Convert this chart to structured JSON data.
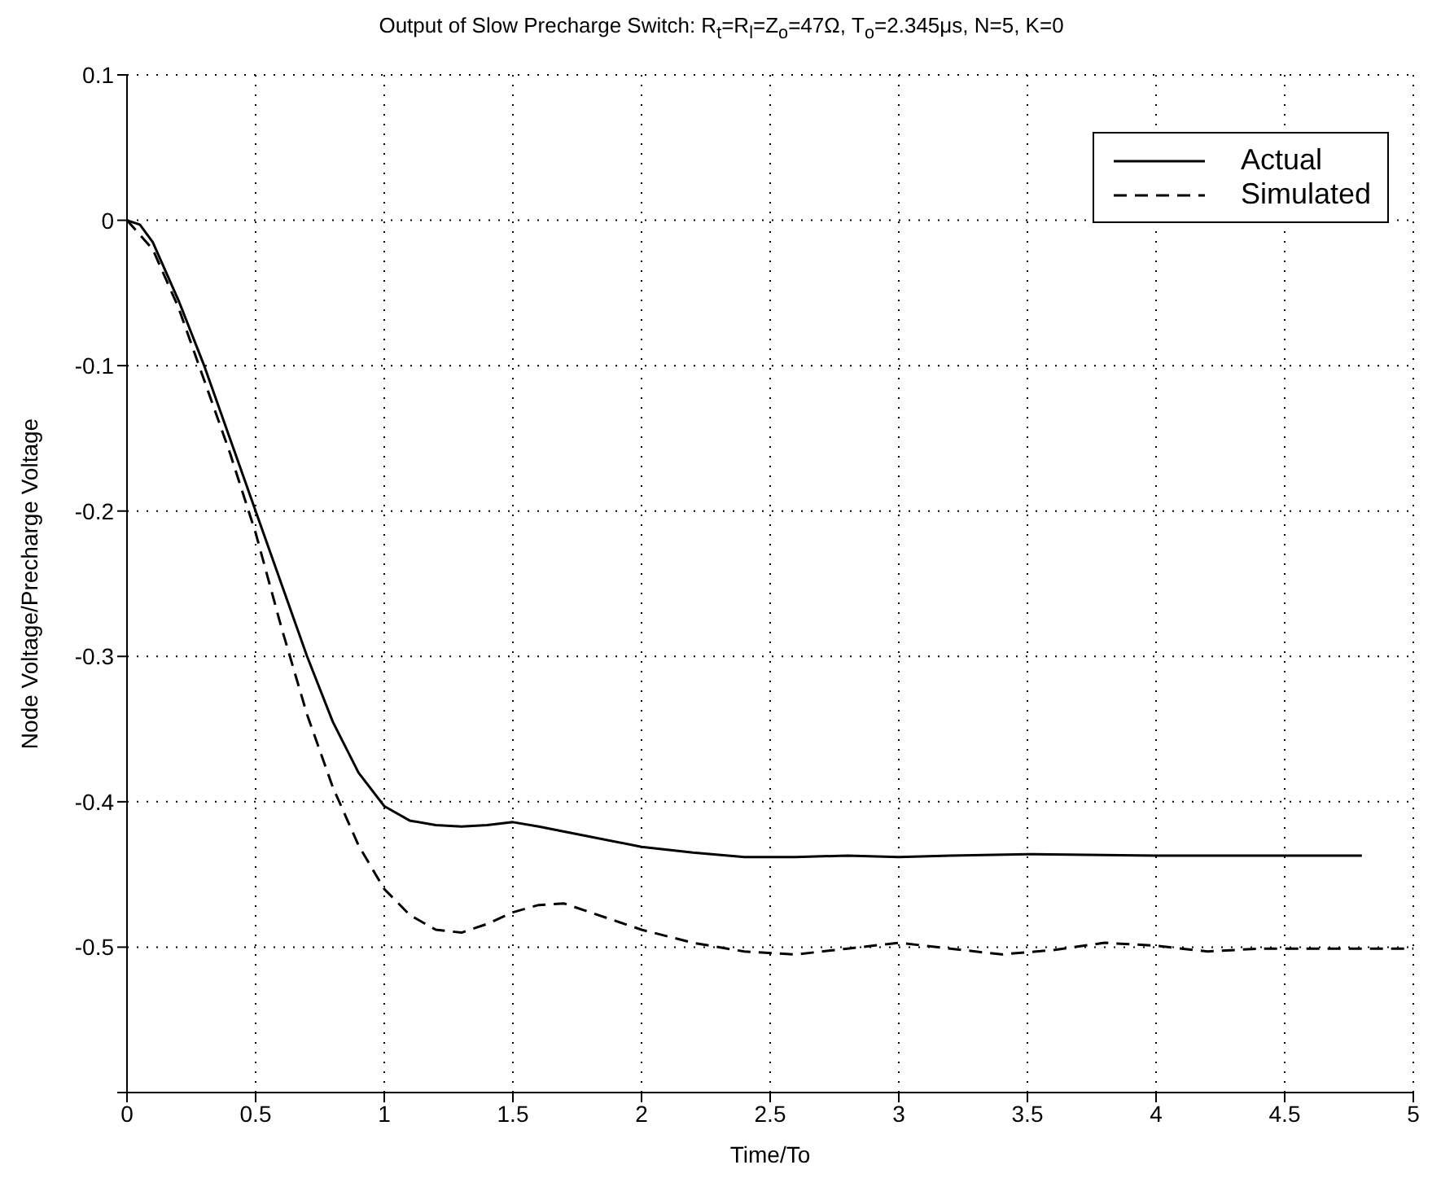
{
  "chart_data": {
    "type": "line",
    "title": "Output of Slow Precharge Switch: R$_{t}$=R$_{l}$=Z$_{o}$=47Ω, T$_{o}$=2.345μs, N=5, K=0",
    "xlabel": "Time/To",
    "ylabel": "Node Voltage/Precharge Voltage",
    "xlim": [
      0,
      5
    ],
    "xticks": [
      0,
      0.5,
      1,
      1.5,
      2,
      2.5,
      3,
      3.5,
      4,
      4.5,
      5
    ],
    "ylim": [
      -0.6,
      0.1
    ],
    "yticks": [
      {
        "value": -0.6,
        "label": null
      },
      -0.5,
      -0.4,
      -0.3,
      -0.2,
      -0.1,
      0,
      0.1
    ],
    "grid": true,
    "legend": "top right",
    "series": [
      {
        "name": "Actual",
        "color": "#000000",
        "line_style": "solid",
        "x": [
          0,
          0.05,
          0.1,
          0.2,
          0.3,
          0.4,
          0.5,
          0.6,
          0.7,
          0.8,
          0.9,
          1.0,
          1.1,
          1.2,
          1.3,
          1.4,
          1.5,
          1.6,
          1.8,
          2.0,
          2.2,
          2.4,
          2.6,
          2.8,
          3.0,
          3.2,
          3.5,
          4.0,
          4.5,
          4.8
        ],
        "values": [
          0,
          -0.003,
          -0.015,
          -0.055,
          -0.1,
          -0.15,
          -0.2,
          -0.25,
          -0.3,
          -0.345,
          -0.38,
          -0.403,
          -0.413,
          -0.416,
          -0.417,
          -0.416,
          -0.414,
          -0.417,
          -0.424,
          -0.431,
          -0.435,
          -0.438,
          -0.438,
          -0.437,
          -0.438,
          -0.437,
          -0.436,
          -0.437,
          -0.437,
          -0.437
        ]
      },
      {
        "name": "Simulated",
        "color": "#000000",
        "line_style": "dashed",
        "x": [
          0,
          0.1,
          0.2,
          0.3,
          0.4,
          0.5,
          0.6,
          0.7,
          0.8,
          0.9,
          1.0,
          1.1,
          1.2,
          1.3,
          1.4,
          1.5,
          1.6,
          1.7,
          1.8,
          2.0,
          2.2,
          2.4,
          2.6,
          2.8,
          3.0,
          3.2,
          3.4,
          3.6,
          3.8,
          4.0,
          4.2,
          4.4,
          4.6,
          5.0
        ],
        "values": [
          0,
          -0.02,
          -0.06,
          -0.11,
          -0.16,
          -0.215,
          -0.28,
          -0.34,
          -0.39,
          -0.43,
          -0.46,
          -0.478,
          -0.488,
          -0.49,
          -0.484,
          -0.476,
          -0.471,
          -0.47,
          -0.476,
          -0.488,
          -0.497,
          -0.503,
          -0.505,
          -0.501,
          -0.497,
          -0.501,
          -0.505,
          -0.502,
          -0.497,
          -0.499,
          -0.503,
          -0.501,
          -0.501,
          -0.501
        ]
      }
    ]
  }
}
